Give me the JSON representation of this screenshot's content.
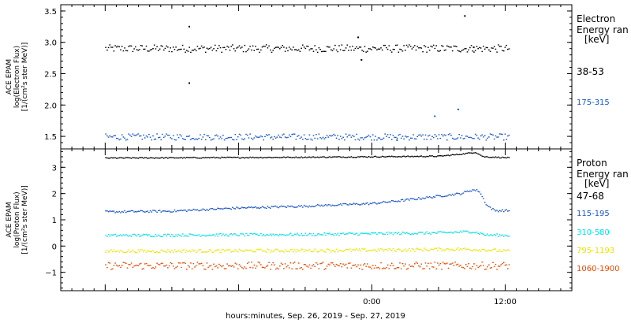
{
  "chart_data": [
    {
      "type": "scatter",
      "panel": "electron",
      "ylabel_lines": [
        "ACE EPAM",
        "log(Electron Flux)",
        "[1/(cm²s ster MeV)]"
      ],
      "ylim": [
        1.3,
        3.6
      ],
      "yticks": [
        1.5,
        2.0,
        2.5,
        3.0,
        3.5
      ],
      "ytick_labels": [
        "1.5",
        "2.0",
        "2.5",
        "3.0",
        "3.5"
      ],
      "legend_title_lines": [
        "Electron",
        "Energy ran",
        "[keV]"
      ],
      "series": [
        {
          "name": "38-53",
          "color": "#000000",
          "level": 2.9,
          "spread": 0.06,
          "outliers": [
            [
              -16.5,
              3.25
            ],
            [
              -16.5,
              2.35
            ],
            [
              -1.3,
              3.08
            ],
            [
              -1.0,
              2.72
            ],
            [
              8.3,
              3.42
            ],
            [
              9.1,
              2.92
            ]
          ]
        },
        {
          "name": "175-315",
          "color": "#1a55c8",
          "level": 1.49,
          "spread": 0.05,
          "outliers": [
            [
              5.6,
              1.82
            ],
            [
              7.7,
              1.93
            ],
            [
              2.2,
              1.44
            ]
          ]
        }
      ]
    },
    {
      "type": "scatter",
      "panel": "proton",
      "ylabel_lines": [
        "ACE EPAM",
        "log(Proton Flux)",
        "[1/(cm²s ster MeV)]"
      ],
      "ylim": [
        -1.7,
        3.7
      ],
      "yticks": [
        -1,
        0,
        1,
        2,
        3
      ],
      "ytick_labels": [
        "−1",
        "0",
        "1",
        "2",
        "3"
      ],
      "legend_title_lines": [
        "Proton",
        "Energy ran",
        "[keV]"
      ],
      "series": [
        {
          "name": "47-68",
          "color": "#000000",
          "profile": [
            [
              -24,
              3.35
            ],
            [
              -6,
              3.38
            ],
            [
              0,
              3.4
            ],
            [
              6,
              3.42
            ],
            [
              8,
              3.5
            ],
            [
              9.3,
              3.57
            ],
            [
              10,
              3.4
            ],
            [
              12.3,
              3.36
            ]
          ],
          "spread": 0.02
        },
        {
          "name": "115-195",
          "color": "#1a55c8",
          "profile": [
            [
              -24,
              1.3
            ],
            [
              -18,
              1.33
            ],
            [
              -12,
              1.45
            ],
            [
              -6,
              1.52
            ],
            [
              0,
              1.62
            ],
            [
              3,
              1.75
            ],
            [
              6,
              1.9
            ],
            [
              8,
              2.0
            ],
            [
              9.0,
              2.14
            ],
            [
              9.6,
              2.1
            ],
            [
              10.3,
              1.55
            ],
            [
              11,
              1.35
            ],
            [
              12.3,
              1.35
            ]
          ],
          "spread": 0.04
        },
        {
          "name": "310-580",
          "color": "#00e0e8",
          "profile": [
            [
              -24,
              0.4
            ],
            [
              -6,
              0.44
            ],
            [
              0,
              0.47
            ],
            [
              6,
              0.5
            ],
            [
              9.0,
              0.55
            ],
            [
              10.3,
              0.42
            ],
            [
              12.3,
              0.4
            ]
          ],
          "spread": 0.05
        },
        {
          "name": "795-1193",
          "color": "#e6e600",
          "profile": [
            [
              -24,
              -0.2
            ],
            [
              0,
              -0.16
            ],
            [
              8,
              -0.12
            ],
            [
              10,
              -0.14
            ],
            [
              12.3,
              -0.2
            ]
          ],
          "spread": 0.06
        },
        {
          "name": "1060-1900",
          "color": "#e84a00",
          "profile": [
            [
              -24,
              -0.75
            ],
            [
              0,
              -0.75
            ],
            [
              12.3,
              -0.75
            ]
          ],
          "spread": 0.14
        }
      ]
    }
  ],
  "x_axis": {
    "label": "hours:minutes, Sep. 26, 2019 - Sep. 27, 2019",
    "ticks": [
      {
        "hours": 0,
        "label": "0:00"
      },
      {
        "hours": 12,
        "label": "12:00"
      }
    ],
    "range_hours": [
      -28,
      18
    ],
    "data_range_hours": [
      -24,
      12.3
    ]
  }
}
